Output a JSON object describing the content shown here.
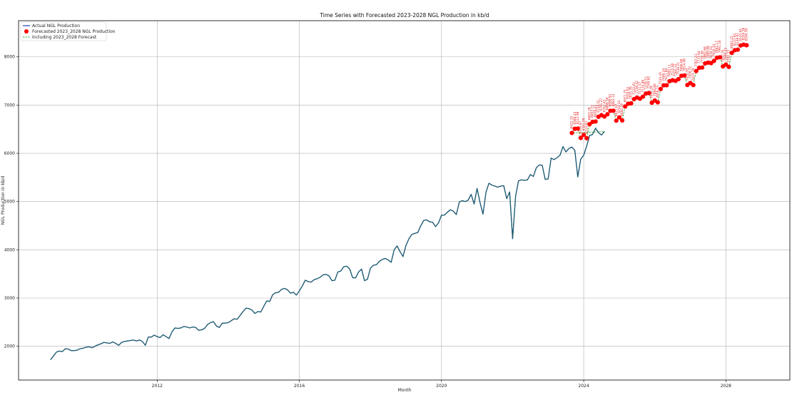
{
  "chart_data": {
    "type": "line",
    "title": "Time Series with Forecasted 2023-2028 NGL Production in kb/d",
    "xlabel": "Month",
    "ylabel": "NGL Production in kb/d",
    "x_ticks": [
      "2012",
      "2016",
      "2020",
      "2024",
      "2028"
    ],
    "y_ticks": [
      2000,
      3000,
      4000,
      5000,
      6000,
      7000,
      8000
    ],
    "xlim": [
      2008.1,
      2029.8
    ],
    "ylim": [
      1300,
      8750
    ],
    "grid": true,
    "legend_position": "top-left",
    "colors": {
      "actual": "#1f3fbf",
      "forecast": "#ff0000",
      "combined": "#2ca02c",
      "overlap": "#1a5a60"
    },
    "series": [
      {
        "name": "Actual NGL Production",
        "kind": "line",
        "start": "2009-01",
        "values": [
          1720,
          1800,
          1880,
          1900,
          1890,
          1950,
          1940,
          1910,
          1910,
          1920,
          1950,
          1960,
          1980,
          1990,
          1970,
          2000,
          2030,
          2050,
          2080,
          2070,
          2060,
          2090,
          2060,
          2020,
          2080,
          2100,
          2110,
          2120,
          2130,
          2110,
          2130,
          2100,
          2020,
          2190,
          2190,
          2230,
          2200,
          2180,
          2240,
          2200,
          2160,
          2300,
          2380,
          2370,
          2380,
          2410,
          2400,
          2380,
          2400,
          2390,
          2330,
          2340,
          2370,
          2450,
          2490,
          2510,
          2420,
          2390,
          2480,
          2480,
          2490,
          2530,
          2570,
          2560,
          2640,
          2720,
          2790,
          2780,
          2750,
          2680,
          2720,
          2710,
          2830,
          2940,
          2930,
          3070,
          3110,
          3120,
          3180,
          3200,
          3170,
          3100,
          3120,
          3060,
          3150,
          3250,
          3370,
          3340,
          3330,
          3380,
          3400,
          3430,
          3480,
          3490,
          3460,
          3360,
          3370,
          3540,
          3560,
          3650,
          3660,
          3600,
          3420,
          3420,
          3540,
          3600,
          3360,
          3390,
          3620,
          3680,
          3690,
          3760,
          3800,
          3820,
          3790,
          3740,
          4000,
          4080,
          3960,
          3860,
          4090,
          4230,
          4320,
          4340,
          4360,
          4500,
          4610,
          4620,
          4580,
          4570,
          4480,
          4560,
          4720,
          4720,
          4780,
          4830,
          4800,
          4730,
          4990,
          5020,
          5000,
          5030,
          5150,
          4950,
          5270,
          4980,
          4740,
          5190,
          5380,
          5340,
          5320,
          5300,
          5320,
          5330,
          5060,
          5200,
          4230,
          5110,
          5430,
          5450,
          5440,
          5450,
          5560,
          5520,
          5700,
          5760,
          5750,
          5460,
          5470,
          5900,
          5870,
          5910,
          5960,
          6140,
          6030,
          6100,
          6130,
          6060,
          5510,
          5880,
          5960,
          6150,
          6370,
          6390,
          6520,
          6430,
          6380,
          6450
        ]
      },
      {
        "name": "Forecasted 2023_2028 NGL Production",
        "kind": "markers",
        "start": "2023-09",
        "values": [
          6422.35,
          6508.24,
          6512.98,
          6318.87,
          6381.99,
          6314.63,
          6603.2,
          6652.72,
          6659.01,
          6758.51,
          6791.27,
          6762.42,
          6809.38,
          6880.92,
          6883.14,
          6677.07,
          6744.34,
          6682.19,
          6971.75,
          7028.02,
          7035.7,
          7123.81,
          7156.42,
          7131.57,
          7174.8,
          7239.51,
          7249.62,
          7048.29,
          7094.6,
          7056.73,
          7334.45,
          7409.24,
          7411.09,
          7495.11,
          7515.4,
          7502.12,
          7538.21,
          7606.68,
          7614.48,
          7416.93,
          7456.72,
          7415.79,
          7707.23,
          7772.94,
          7778.5,
          7862.68,
          7880.08,
          7870.52,
          7916.34,
          7982.17,
          7991.18,
          7802.55,
          7840.22,
          7792.33,
          8083.15,
          8137.91,
          8148.61,
          8235.64,
          8254.26,
          8240.39
        ],
        "labels": [
          "6422.35",
          "6508.24",
          "6512.98",
          "6318.87",
          "6381.99",
          "6314.63",
          "6603.20",
          "6652.72",
          "6659.01",
          "6758.51",
          "6791.27",
          "6762.42",
          "6809.38",
          "6880.92",
          "6883.14",
          "6677.07",
          "6744.34",
          "6682.19",
          "6971.75",
          "7028.02",
          "7035.70",
          "7123.81",
          "7156.42",
          "7131.57",
          "7174.80",
          "7239.51",
          "7249.62",
          "7048.29",
          "7094.60",
          "7056.73",
          "7334.45",
          "7409.24",
          "7411.09",
          "7495.11",
          "7515.40",
          "7502.12",
          "7538.21",
          "7606.68",
          "7614.48",
          "7416.93",
          "7456.72",
          "7415.79",
          "7707.23",
          "7772.94",
          "7778.50",
          "7862.68",
          "7880.08",
          "7870.52",
          "7916.34",
          "7982.17",
          "7991.18",
          "7802.55",
          "7840.22",
          "7792.33",
          "8083.15",
          "8137.91",
          "8148.61",
          "8235.64",
          "8254.26",
          "8240.39"
        ]
      },
      {
        "name": "Including 2023_2028 Forecast",
        "kind": "dashed",
        "note_values": "actual series followed by forecast series"
      }
    ]
  }
}
